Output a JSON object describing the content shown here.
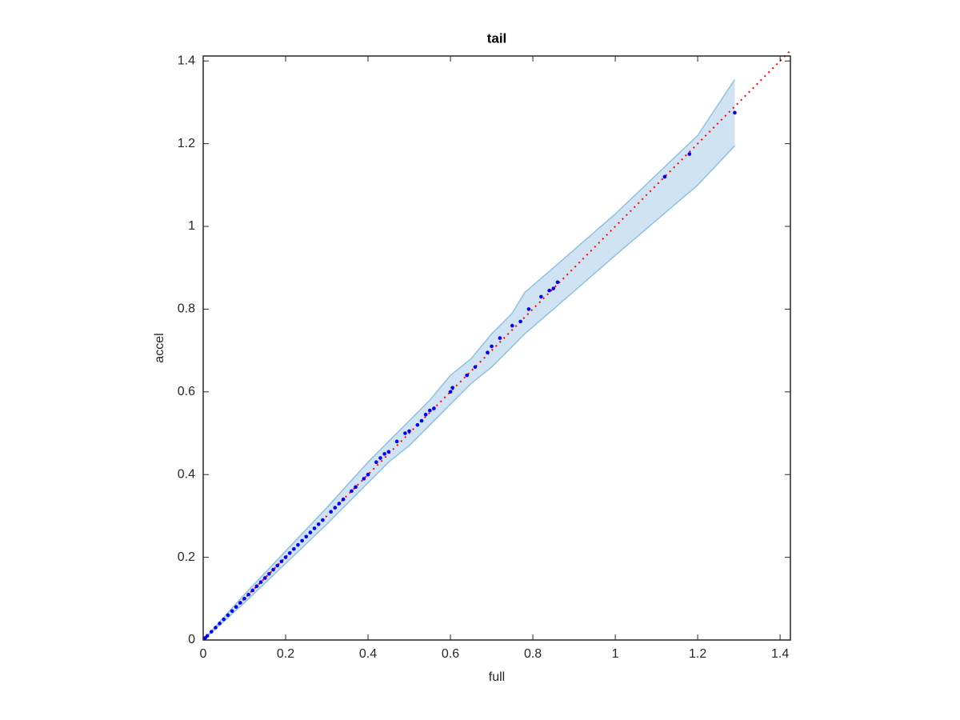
{
  "chart_data": {
    "type": "scatter",
    "title": "tail",
    "x_label": "full",
    "y_label": "accel",
    "xlim": [
      0,
      1.425
    ],
    "ylim": [
      0,
      1.412
    ],
    "xticks": [
      0,
      0.2,
      0.4,
      0.6,
      0.8,
      1,
      1.2,
      1.4
    ],
    "yticks": [
      0,
      0.2,
      0.4,
      0.6,
      0.8,
      1,
      1.2,
      1.4
    ],
    "band": {
      "color": "#cfe3f2",
      "edge_color": "#8fc0e0",
      "x": [
        0,
        0.1,
        0.2,
        0.3,
        0.4,
        0.45,
        0.5,
        0.55,
        0.6,
        0.65,
        0.7,
        0.75,
        0.78,
        0.85,
        1.0,
        1.2,
        1.29
      ],
      "upper": [
        0,
        0.11,
        0.215,
        0.32,
        0.43,
        0.48,
        0.53,
        0.58,
        0.64,
        0.68,
        0.74,
        0.79,
        0.84,
        0.9,
        1.03,
        1.22,
        1.355
      ],
      "lower": [
        0,
        0.09,
        0.185,
        0.28,
        0.38,
        0.43,
        0.47,
        0.52,
        0.57,
        0.62,
        0.66,
        0.71,
        0.74,
        0.8,
        0.93,
        1.1,
        1.195
      ]
    },
    "reference_line": {
      "color": "#ff0000",
      "x": [
        0,
        1.425
      ],
      "y": [
        0,
        1.425
      ]
    },
    "points": {
      "color": "#0000ff",
      "x": [
        0.005,
        0.01,
        0.02,
        0.03,
        0.04,
        0.05,
        0.06,
        0.07,
        0.08,
        0.09,
        0.1,
        0.11,
        0.12,
        0.13,
        0.14,
        0.15,
        0.16,
        0.17,
        0.18,
        0.19,
        0.2,
        0.21,
        0.22,
        0.23,
        0.24,
        0.25,
        0.26,
        0.27,
        0.28,
        0.29,
        0.31,
        0.32,
        0.33,
        0.34,
        0.36,
        0.37,
        0.39,
        0.4,
        0.42,
        0.43,
        0.44,
        0.45,
        0.47,
        0.49,
        0.5,
        0.52,
        0.53,
        0.54,
        0.55,
        0.56,
        0.6,
        0.605,
        0.64,
        0.66,
        0.69,
        0.7,
        0.72,
        0.75,
        0.77,
        0.79,
        0.82,
        0.84,
        0.85,
        0.86,
        1.12,
        1.18,
        1.29
      ],
      "y": [
        0.005,
        0.01,
        0.02,
        0.03,
        0.04,
        0.05,
        0.06,
        0.07,
        0.08,
        0.09,
        0.1,
        0.11,
        0.12,
        0.13,
        0.14,
        0.15,
        0.16,
        0.17,
        0.18,
        0.19,
        0.2,
        0.21,
        0.22,
        0.23,
        0.24,
        0.25,
        0.26,
        0.27,
        0.28,
        0.29,
        0.31,
        0.32,
        0.33,
        0.34,
        0.36,
        0.37,
        0.39,
        0.4,
        0.43,
        0.44,
        0.45,
        0.455,
        0.48,
        0.5,
        0.505,
        0.52,
        0.53,
        0.545,
        0.555,
        0.56,
        0.6,
        0.61,
        0.64,
        0.66,
        0.695,
        0.71,
        0.73,
        0.76,
        0.77,
        0.8,
        0.83,
        0.845,
        0.85,
        0.865,
        1.12,
        1.175,
        1.275
      ]
    }
  }
}
